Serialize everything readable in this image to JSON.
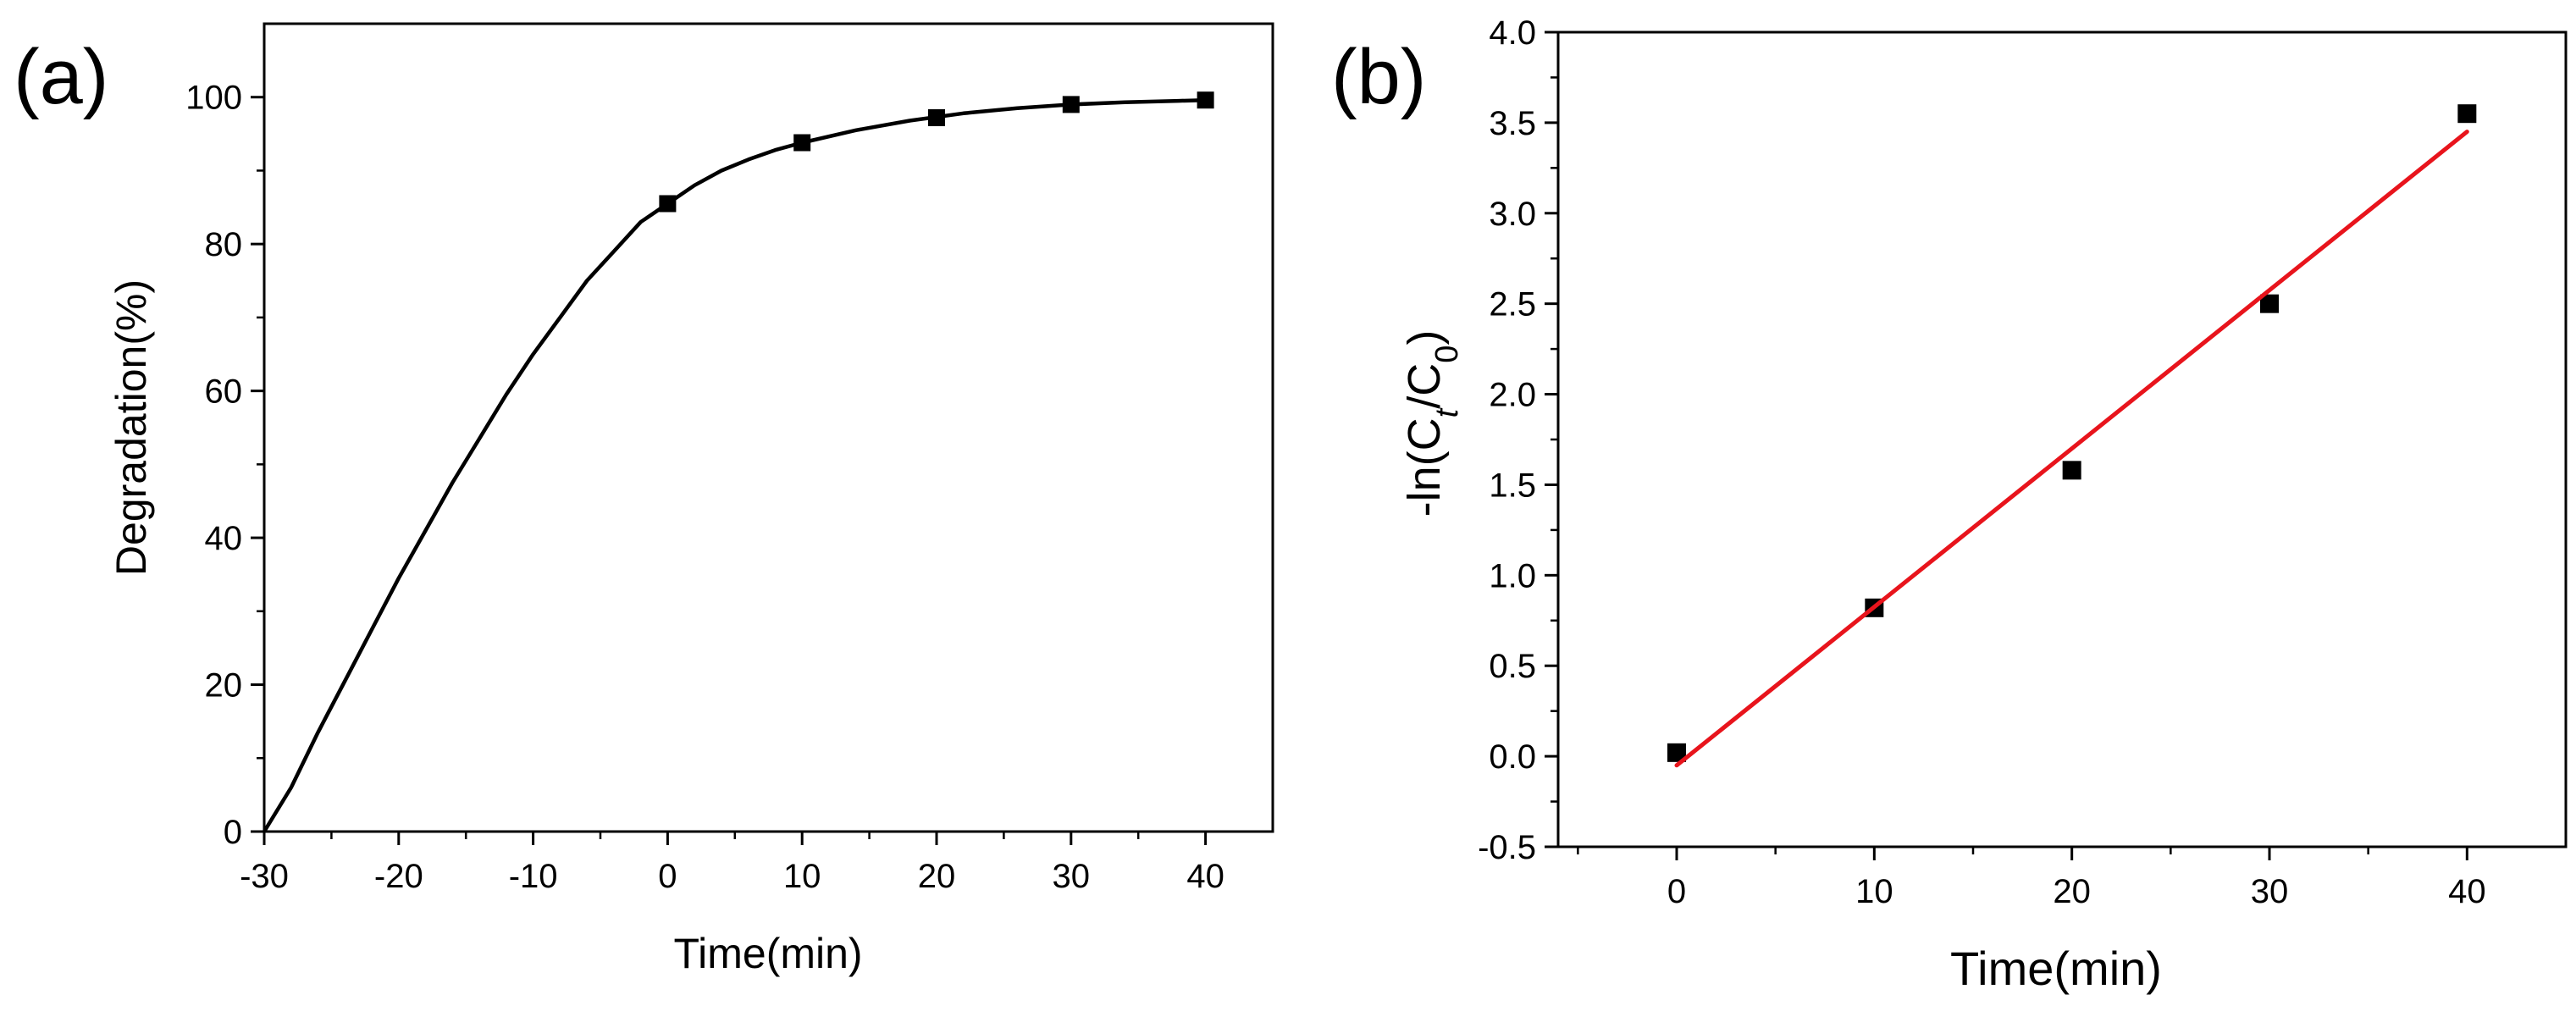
{
  "chart_data": [
    {
      "panel": "(a)",
      "type": "line",
      "xlabel": "Time(min)",
      "ylabel": "Degradation(%)",
      "xlim": [
        -30,
        45
      ],
      "ylim": [
        0,
        110
      ],
      "xticks": [
        -30,
        -20,
        -10,
        0,
        10,
        20,
        30,
        40
      ],
      "yticks": [
        0,
        20,
        40,
        60,
        80,
        100
      ],
      "series": [
        {
          "name": "curve",
          "color": "#000000",
          "x": [
            -30,
            -28,
            -26,
            -24,
            -22,
            -20,
            -18,
            -16,
            -14,
            -12,
            -10,
            -8,
            -6,
            -4,
            -2,
            0,
            2,
            4,
            6,
            8,
            10,
            14,
            18,
            22,
            26,
            30,
            34,
            38,
            40
          ],
          "y": [
            0,
            6,
            13.5,
            20.5,
            27.5,
            34.5,
            41,
            47.5,
            53.5,
            59.5,
            65,
            70,
            75,
            79,
            83,
            85.5,
            88,
            90,
            91.5,
            92.8,
            93.8,
            95.5,
            96.8,
            97.8,
            98.5,
            99,
            99.3,
            99.5,
            99.6
          ]
        },
        {
          "name": "markers",
          "color": "#000000",
          "x": [
            0,
            10,
            20,
            30,
            40
          ],
          "y": [
            85.5,
            93.8,
            97.2,
            99.0,
            99.6
          ]
        }
      ]
    },
    {
      "panel": "(b)",
      "type": "scatter",
      "xlabel": "Time(min)",
      "ylabel": "-ln(C",
      "ylabel_sub1": "t",
      "ylabel_mid": "/C",
      "ylabel_sub2": "0",
      "ylabel_end": ")",
      "xlim": [
        -6,
        45
      ],
      "ylim": [
        -0.5,
        4.0
      ],
      "xticks": [
        0,
        10,
        20,
        30,
        40
      ],
      "yticks": [
        "-0.5",
        "0.0",
        "0.5",
        "1.0",
        "1.5",
        "2.0",
        "2.5",
        "3.0",
        "3.5",
        "4.0"
      ],
      "series": [
        {
          "name": "data",
          "color": "#000000",
          "x": [
            0,
            10,
            20,
            30,
            40
          ],
          "y": [
            0.02,
            0.82,
            1.58,
            2.5,
            3.55
          ]
        },
        {
          "name": "linear-fit",
          "color": "#e8141c",
          "x": [
            0,
            40
          ],
          "y": [
            -0.05,
            3.45
          ]
        }
      ]
    }
  ]
}
